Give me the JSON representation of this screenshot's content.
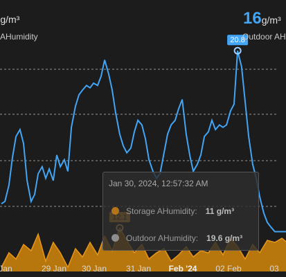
{
  "header": {
    "left_value": "",
    "left_unit": "g/m³",
    "left_label": "AHumidity",
    "right_value": "16",
    "right_unit": "g/m³",
    "right_label": "Outdoor AH"
  },
  "colors": {
    "storage": "#d4870a",
    "outdoor": "#42a5f5",
    "grid": "#bfbfbf",
    "background": "#1c1c1c"
  },
  "tooltip": {
    "title": "Jan 30, 2024, 12:57:32 AM",
    "rows": [
      {
        "label": "Storage AHumidity:",
        "value": "11 g/m³",
        "color": "#d4870a"
      },
      {
        "label": "Outdoor AHumidity:",
        "value": "19.6 g/m³",
        "color": "#c9c9c9"
      }
    ]
  },
  "chart_data": {
    "type": "line",
    "x_ticks": [
      "Jan",
      "29 Jan",
      "30 Jan",
      "31 Jan",
      "Feb '24",
      "02 Feb",
      "03"
    ],
    "series": [
      {
        "name": "Outdoor AHumidity",
        "unit": "g/m³",
        "x": [
          0,
          0.08,
          0.17,
          0.25,
          0.33,
          0.42,
          0.5,
          0.58,
          0.67,
          0.75,
          0.83,
          0.92,
          1.0,
          1.08,
          1.17,
          1.25,
          1.33,
          1.42,
          1.5,
          1.58,
          1.67,
          1.75,
          1.83,
          1.92,
          2.0,
          2.08,
          2.17,
          2.25,
          2.33,
          2.42,
          2.5,
          2.58,
          2.67,
          2.75,
          2.83,
          2.92,
          3.0,
          3.08,
          3.17,
          3.25,
          3.33,
          3.42,
          3.5,
          3.58,
          3.67,
          3.75,
          3.83,
          3.92,
          4.0,
          4.08,
          4.17,
          4.25,
          4.33,
          4.42,
          4.5,
          4.58,
          4.67,
          4.75,
          4.83,
          4.92,
          5.0,
          5.08,
          5.17,
          5.25,
          5.33,
          5.42,
          5.5,
          5.58,
          5.67,
          5.75,
          5.83,
          5.92,
          6.0,
          6.08,
          6.17,
          6.25,
          6.33,
          6.42,
          6.5
        ],
        "y": [
          14.2,
          14.3,
          15.0,
          16.2,
          17.1,
          17.4,
          16.8,
          15.2,
          14.3,
          14.6,
          15.5,
          15.8,
          15.3,
          15.7,
          15.2,
          16.3,
          15.8,
          16.1,
          15.6,
          17.5,
          18.4,
          18.9,
          19.1,
          19.3,
          19.2,
          19.4,
          19.3,
          19.7,
          20.4,
          19.8,
          19.1,
          18.1,
          17.2,
          16.7,
          16.4,
          16.6,
          17.3,
          17.8,
          17.6,
          17.0,
          16.1,
          15.6,
          15.3,
          15.5,
          16.4,
          17.2,
          17.6,
          17.8,
          18.3,
          18.7,
          17.2,
          16.3,
          15.6,
          15.9,
          16.3,
          17.1,
          17.3,
          17.8,
          17.4,
          17.6,
          17.5,
          17.6,
          18.2,
          18.5,
          20.8,
          20.1,
          18.6,
          17.1,
          15.9,
          15.3,
          14.5,
          13.8,
          13.4,
          13.2,
          13.0,
          13.0,
          13.0,
          13.0,
          13.0
        ]
      },
      {
        "name": "Storage AHumidity",
        "unit": "g/m³",
        "x": [
          0,
          0.17,
          0.33,
          0.5,
          0.67,
          0.83,
          1.0,
          1.17,
          1.33,
          1.5,
          1.67,
          1.83,
          2.0,
          2.17,
          2.33,
          2.5,
          2.67,
          2.83,
          3.0,
          3.17,
          3.33,
          3.5,
          3.67,
          3.83,
          4.0,
          4.17,
          4.33,
          4.5,
          4.67,
          4.83,
          5.0,
          5.17,
          5.33,
          5.5,
          5.67,
          5.83,
          6.0,
          6.17,
          6.33,
          6.5
        ],
        "y": [
          10.2,
          10.9,
          10.6,
          11.3,
          11.0,
          11.8,
          10.5,
          11.4,
          10.9,
          10.2,
          11.1,
          10.7,
          11.4,
          10.8,
          11.7,
          11.0,
          12.1,
          11.5,
          10.9,
          11.3,
          10.6,
          10.9,
          11.1,
          10.5,
          10.8,
          11.2,
          10.7,
          11.0,
          10.9,
          11.4,
          10.8,
          11.6,
          11.2,
          10.6,
          11.3,
          10.9,
          11.5,
          11.4,
          11.6,
          11.3
        ]
      }
    ],
    "markers": [
      {
        "series": "Outdoor AHumidity",
        "x": 5.33,
        "y": 20.8,
        "label": "20.8"
      },
      {
        "series": "Storage AHumidity",
        "x": 2.67,
        "y": 12.1,
        "label": "12.1"
      }
    ],
    "xlabel": "",
    "ylabel": "",
    "grid": "dashed-horizontal"
  }
}
